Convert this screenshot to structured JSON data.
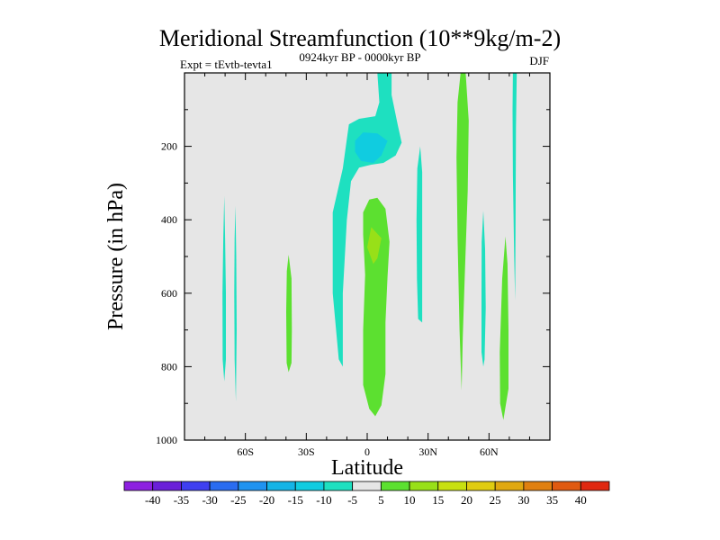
{
  "chart_data": {
    "type": "contour",
    "title": "Meridional Streamfunction (10**9kg/m-2)",
    "left_string": "Expt = tEvtb-tevta1",
    "center_string": "0924kyr BP - 0000kyr BP",
    "right_string": "DJF",
    "xlabel": "Latitude",
    "ylabel": "Pressure (in hPa)",
    "xlim": [
      -90,
      90
    ],
    "ylim": [
      1000,
      0
    ],
    "x_ticks": [
      {
        "value": -60,
        "label": "60S"
      },
      {
        "value": -30,
        "label": "30S"
      },
      {
        "value": 0,
        "label": "0"
      },
      {
        "value": 30,
        "label": "30N"
      },
      {
        "value": 60,
        "label": "60N"
      }
    ],
    "y_ticks": [
      {
        "value": 200,
        "label": "200"
      },
      {
        "value": 400,
        "label": "400"
      },
      {
        "value": 600,
        "label": "600"
      },
      {
        "value": 800,
        "label": "800"
      },
      {
        "value": 1000,
        "label": "1000"
      }
    ],
    "colorbar": {
      "levels": [
        -40,
        -35,
        -30,
        -25,
        -20,
        -15,
        -10,
        -5,
        5,
        10,
        15,
        20,
        25,
        30,
        35,
        40
      ],
      "labels": [
        "-40",
        "-35",
        "-30",
        "-25",
        "-20",
        "-15",
        "-10",
        "-5",
        "5",
        "10",
        "15",
        "20",
        "25",
        "30",
        "35",
        "40"
      ],
      "colors": [
        "#8d20e0",
        "#6a1fd8",
        "#3f3ff0",
        "#2a6cf0",
        "#1f93f0",
        "#14b4e6",
        "#10cce0",
        "#1ee0c0",
        "#e6e6e6",
        "#5ce030",
        "#98e018",
        "#c8e010",
        "#e0cc10",
        "#e0a810",
        "#e08010",
        "#e05a10",
        "#e02810"
      ]
    },
    "background_color": "#e6e6e6",
    "regions": [
      {
        "name": "upper-tropical-tongue",
        "value": -7.5,
        "points": [
          [
            5,
            0
          ],
          [
            12,
            0
          ],
          [
            12,
            60
          ],
          [
            15,
            140
          ],
          [
            17,
            190
          ],
          [
            14,
            225
          ],
          [
            8,
            245
          ],
          [
            2,
            250
          ],
          [
            -4,
            258
          ],
          [
            -8,
            295
          ],
          [
            -10,
            400
          ],
          [
            -12,
            600
          ],
          [
            -12,
            800
          ],
          [
            -14,
            780
          ],
          [
            -17,
            600
          ],
          [
            -17,
            380
          ],
          [
            -12,
            260
          ],
          [
            -10,
            180
          ],
          [
            -9,
            140
          ],
          [
            -4,
            125
          ],
          [
            4,
            118
          ],
          [
            6,
            80
          ]
        ]
      },
      {
        "name": "upper-core",
        "value": -12.5,
        "points": [
          [
            -6,
            185
          ],
          [
            -2,
            162
          ],
          [
            5,
            165
          ],
          [
            10,
            185
          ],
          [
            7,
            225
          ],
          [
            3,
            245
          ],
          [
            -3,
            240
          ],
          [
            -6,
            215
          ]
        ]
      },
      {
        "name": "mid-core",
        "value": 7.5,
        "points": [
          [
            1,
            345
          ],
          [
            5,
            340
          ],
          [
            9,
            370
          ],
          [
            11,
            460
          ],
          [
            10,
            555
          ],
          [
            9,
            680
          ],
          [
            9,
            820
          ],
          [
            7,
            905
          ],
          [
            4,
            935
          ],
          [
            1,
            915
          ],
          [
            -2,
            850
          ],
          [
            -2,
            700
          ],
          [
            -1,
            550
          ],
          [
            -2,
            440
          ],
          [
            -2,
            380
          ]
        ]
      },
      {
        "name": "mid-core-inner",
        "value": 12.5,
        "points": [
          [
            2,
            420
          ],
          [
            7,
            450
          ],
          [
            5,
            505
          ],
          [
            3,
            520
          ],
          [
            0,
            475
          ]
        ]
      },
      {
        "name": "south-strip-a",
        "value": -7.5,
        "points": [
          [
            -70.4,
            335
          ],
          [
            -70,
            450
          ],
          [
            -69.6,
            600
          ],
          [
            -69.6,
            780
          ],
          [
            -70.4,
            840
          ],
          [
            -71.2,
            780
          ],
          [
            -71.3,
            600
          ],
          [
            -70.9,
            450
          ]
        ]
      },
      {
        "name": "south-strip-b",
        "value": -7.5,
        "points": [
          [
            -64.9,
            362
          ],
          [
            -64.5,
            500
          ],
          [
            -64.3,
            700
          ],
          [
            -64.7,
            895
          ],
          [
            -65.3,
            780
          ],
          [
            -65.5,
            600
          ],
          [
            -65.3,
            450
          ]
        ]
      },
      {
        "name": "south-strip-c",
        "value": 7.5,
        "points": [
          [
            -38.7,
            495
          ],
          [
            -37.3,
            560
          ],
          [
            -37.1,
            700
          ],
          [
            -37.3,
            790
          ],
          [
            -38.7,
            815
          ],
          [
            -39.7,
            790
          ],
          [
            -39.9,
            650
          ],
          [
            -39.6,
            540
          ]
        ]
      },
      {
        "name": "north-strip-a",
        "value": -7.5,
        "points": [
          [
            26.1,
            200
          ],
          [
            27.1,
            270
          ],
          [
            27.1,
            600
          ],
          [
            27.1,
            680
          ],
          [
            25.1,
            670
          ],
          [
            24.5,
            560
          ],
          [
            24.3,
            400
          ],
          [
            24.7,
            260
          ]
        ]
      },
      {
        "name": "north-strip-b",
        "value": 7.5,
        "points": [
          [
            46,
            0
          ],
          [
            48.5,
            0
          ],
          [
            50,
            130
          ],
          [
            49.5,
            320
          ],
          [
            48,
            560
          ],
          [
            47.1,
            720
          ],
          [
            46.5,
            865
          ],
          [
            45.5,
            700
          ],
          [
            44.5,
            450
          ],
          [
            44,
            230
          ],
          [
            44.5,
            80
          ]
        ]
      },
      {
        "name": "north-strip-c",
        "value": -7.5,
        "points": [
          [
            57.2,
            375
          ],
          [
            58.1,
            480
          ],
          [
            58.4,
            640
          ],
          [
            57.8,
            780
          ],
          [
            57.2,
            800
          ],
          [
            56.3,
            760
          ],
          [
            56.3,
            600
          ],
          [
            56.4,
            460
          ]
        ]
      },
      {
        "name": "north-strip-d",
        "value": 7.5,
        "points": [
          [
            68.1,
            445
          ],
          [
            69.1,
            520
          ],
          [
            69.6,
            700
          ],
          [
            69.6,
            860
          ],
          [
            67.1,
            945
          ],
          [
            65.5,
            900
          ],
          [
            65.3,
            760
          ],
          [
            66.5,
            560
          ]
        ]
      },
      {
        "name": "north-strip-e",
        "value": -7.5,
        "points": [
          [
            71.8,
            0
          ],
          [
            73.7,
            0
          ],
          [
            73.3,
            150
          ],
          [
            73.1,
            380
          ],
          [
            72.9,
            620
          ],
          [
            72.4,
            500
          ],
          [
            71.8,
            280
          ],
          [
            71.6,
            100
          ]
        ]
      }
    ]
  }
}
